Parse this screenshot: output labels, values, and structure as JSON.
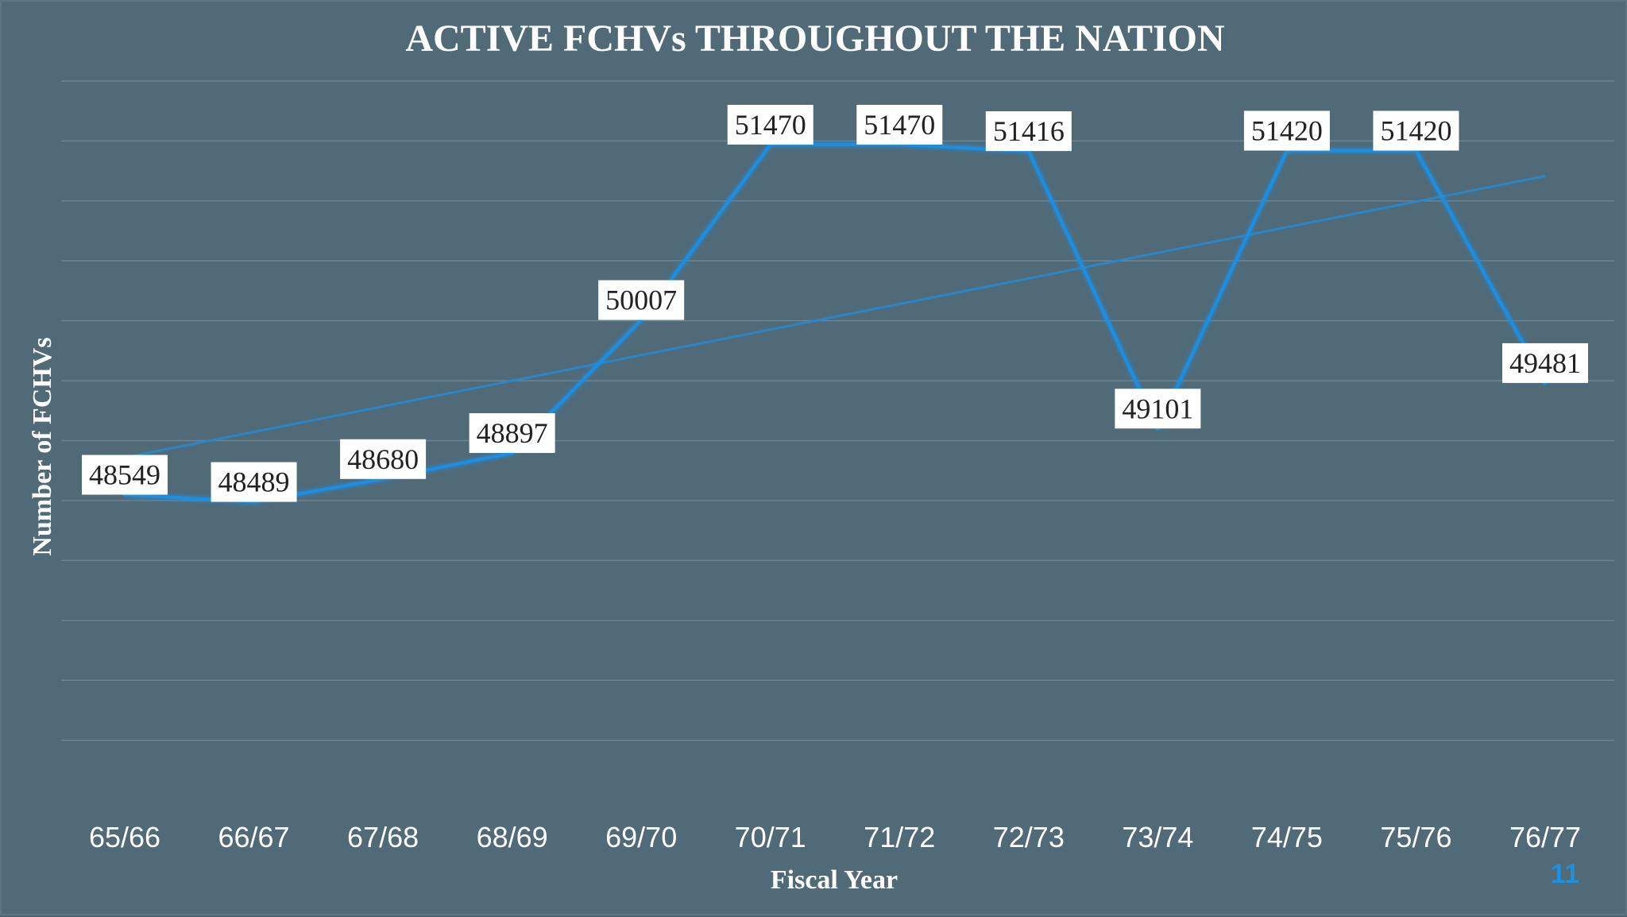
{
  "slide": {
    "page_number": "11"
  },
  "chart_data": {
    "type": "line",
    "title": "ACTIVE FCHVs THROUGHOUT THE NATION",
    "xlabel": "Fiscal Year",
    "ylabel": "Number of FCHVs",
    "categories": [
      "65/66",
      "66/67",
      "67/68",
      "68/69",
      "69/70",
      "70/71",
      "71/72",
      "72/73",
      "73/74",
      "74/75",
      "75/76",
      "76/77"
    ],
    "series": [
      {
        "values": [
          48549,
          48489,
          48680,
          48897,
          50007,
          51470,
          51470,
          51416,
          49101,
          51420,
          51420,
          49481
        ]
      }
    ],
    "data_labels": [
      "48549",
      "48489",
      "48680",
      "48897",
      "50007",
      "51470",
      "51470",
      "51416",
      "49101",
      "51420",
      "51420",
      "49481"
    ],
    "trendline": "linear",
    "ylim": [
      46000,
      52000
    ],
    "grid": true,
    "y_tick_labels_shown": false,
    "colors": {
      "line": "#1a8fe3",
      "trendline": "#2a86c8",
      "gridline": "#6c8593",
      "text": "#ffffff",
      "label_box": "#ffffff",
      "label_text": "#222222"
    }
  }
}
